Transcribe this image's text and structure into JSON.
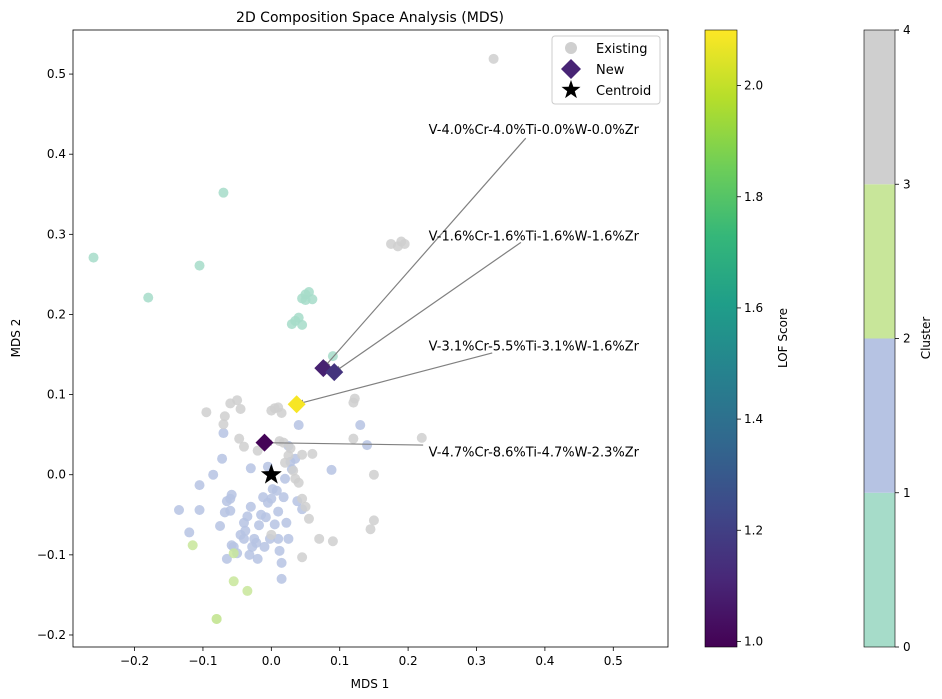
{
  "chart_data": {
    "type": "scatter",
    "title": "2D Composition Space Analysis (MDS)",
    "xlabel": "MDS 1",
    "ylabel": "MDS 2",
    "xlim": [
      -0.29,
      0.58
    ],
    "ylim": [
      -0.215,
      0.555
    ],
    "xticks": [
      -0.2,
      -0.1,
      0.0,
      0.1,
      0.2,
      0.3,
      0.4,
      0.5
    ],
    "xtick_labels": [
      "−0.2",
      "−0.1",
      "0.0",
      "0.1",
      "0.2",
      "0.3",
      "0.4",
      "0.5"
    ],
    "yticks": [
      -0.2,
      -0.1,
      0.0,
      0.1,
      0.2,
      0.3,
      0.4,
      0.5
    ],
    "ytick_labels": [
      "−0.2",
      "−0.1",
      "0.0",
      "0.1",
      "0.2",
      "0.3",
      "0.4",
      "0.5"
    ],
    "grid": false,
    "legend_position": "top-right",
    "legend": [
      "Existing",
      "New",
      "Centroid"
    ],
    "cluster_colors": [
      "#a6dcc9",
      "#b6c3e3",
      "#c8e69a",
      "#cfcfcf"
    ],
    "existing_by_cluster": [
      {
        "cluster": 0,
        "points": [
          [
            -0.26,
            0.271
          ],
          [
            -0.18,
            0.221
          ],
          [
            -0.07,
            0.352
          ],
          [
            -0.105,
            0.261
          ],
          [
            0.03,
            0.188
          ],
          [
            0.04,
            0.196
          ],
          [
            0.045,
            0.187
          ],
          [
            0.045,
            0.22
          ],
          [
            0.05,
            0.225
          ],
          [
            0.055,
            0.228
          ],
          [
            0.06,
            0.219
          ],
          [
            0.035,
            0.192
          ],
          [
            0.09,
            0.148
          ],
          [
            0.05,
            0.218
          ]
        ]
      },
      {
        "cluster": 1,
        "points": [
          [
            -0.135,
            -0.044
          ],
          [
            -0.12,
            -0.072
          ],
          [
            -0.105,
            -0.013
          ],
          [
            -0.105,
            -0.044
          ],
          [
            -0.085,
            0.0
          ],
          [
            -0.075,
            -0.064
          ],
          [
            -0.072,
            0.02
          ],
          [
            -0.068,
            -0.047
          ],
          [
            -0.065,
            -0.033
          ],
          [
            -0.065,
            -0.105
          ],
          [
            -0.06,
            -0.03
          ],
          [
            -0.06,
            -0.045
          ],
          [
            -0.058,
            -0.025
          ],
          [
            -0.058,
            -0.088
          ],
          [
            -0.055,
            -0.09
          ],
          [
            -0.05,
            -0.098
          ],
          [
            -0.045,
            -0.075
          ],
          [
            -0.04,
            -0.08
          ],
          [
            -0.04,
            -0.06
          ],
          [
            -0.038,
            -0.07
          ],
          [
            -0.035,
            -0.052
          ],
          [
            -0.032,
            -0.1
          ],
          [
            -0.03,
            0.008
          ],
          [
            -0.03,
            -0.04
          ],
          [
            -0.028,
            -0.09
          ],
          [
            -0.025,
            -0.08
          ],
          [
            -0.022,
            -0.085
          ],
          [
            -0.02,
            -0.105
          ],
          [
            -0.018,
            -0.063
          ],
          [
            -0.015,
            -0.05
          ],
          [
            -0.012,
            -0.028
          ],
          [
            -0.01,
            -0.09
          ],
          [
            -0.008,
            -0.053
          ],
          [
            -0.005,
            0.01
          ],
          [
            -0.002,
            -0.08
          ],
          [
            0.0,
            -0.03
          ],
          [
            0.002,
            -0.018
          ],
          [
            0.005,
            -0.062
          ],
          [
            0.008,
            -0.02
          ],
          [
            0.01,
            -0.046
          ],
          [
            0.012,
            -0.095
          ],
          [
            0.015,
            -0.13
          ],
          [
            0.015,
            -0.11
          ],
          [
            0.018,
            -0.028
          ],
          [
            0.02,
            -0.005
          ],
          [
            0.022,
            -0.06
          ],
          [
            0.025,
            -0.08
          ],
          [
            0.025,
            0.036
          ],
          [
            0.028,
            0.016
          ],
          [
            0.03,
            0.007
          ],
          [
            0.035,
            0.02
          ],
          [
            0.038,
            -0.033
          ],
          [
            0.04,
            0.062
          ],
          [
            0.045,
            -0.043
          ],
          [
            0.088,
            0.006
          ],
          [
            0.13,
            0.062
          ],
          [
            0.14,
            0.037
          ],
          [
            -0.07,
            0.052
          ],
          [
            -0.005,
            -0.035
          ],
          [
            0.01,
            -0.08
          ]
        ]
      },
      {
        "cluster": 2,
        "points": [
          [
            -0.115,
            -0.088
          ],
          [
            -0.055,
            -0.098
          ],
          [
            -0.055,
            -0.133
          ],
          [
            -0.035,
            -0.145
          ],
          [
            -0.08,
            -0.18
          ],
          [
            -0.08,
            -0.18
          ]
        ]
      },
      {
        "cluster": 3,
        "points": [
          [
            -0.095,
            0.078
          ],
          [
            -0.068,
            0.073
          ],
          [
            -0.07,
            0.063
          ],
          [
            -0.05,
            0.093
          ],
          [
            -0.047,
            0.045
          ],
          [
            -0.045,
            0.082
          ],
          [
            -0.04,
            0.035
          ],
          [
            -0.06,
            0.089
          ],
          [
            0.0,
            0.08
          ],
          [
            0.005,
            0.083
          ],
          [
            0.01,
            0.084
          ],
          [
            0.012,
            0.042
          ],
          [
            0.015,
            0.077
          ],
          [
            0.018,
            0.04
          ],
          [
            0.025,
            0.024
          ],
          [
            0.028,
            0.033
          ],
          [
            0.032,
            0.005
          ],
          [
            0.035,
            -0.005
          ],
          [
            0.04,
            -0.01
          ],
          [
            0.045,
            0.025
          ],
          [
            0.045,
            -0.03
          ],
          [
            0.05,
            -0.04
          ],
          [
            0.055,
            -0.055
          ],
          [
            0.06,
            0.026
          ],
          [
            0.07,
            -0.08
          ],
          [
            0.09,
            -0.083
          ],
          [
            0.12,
            0.09
          ],
          [
            0.122,
            0.095
          ],
          [
            0.12,
            0.045
          ],
          [
            0.145,
            -0.068
          ],
          [
            0.15,
            -0.057
          ],
          [
            0.15,
            0.0
          ],
          [
            0.175,
            0.288
          ],
          [
            0.185,
            0.285
          ],
          [
            0.19,
            0.291
          ],
          [
            0.195,
            0.288
          ],
          [
            0.22,
            0.046
          ],
          [
            0.325,
            0.519
          ],
          [
            0.045,
            -0.103
          ],
          [
            0.0,
            -0.075
          ],
          [
            0.02,
            0.015
          ],
          [
            -0.02,
            0.03
          ]
        ]
      }
    ],
    "new_points": [
      {
        "x": 0.076,
        "y": 0.133,
        "lof": 1.09,
        "label": "V-4.0%Cr-4.0%Ti-0.0%W-0.0%Zr",
        "label_x": 0.23,
        "label_y": 0.43,
        "arrow_from": [
          0.372,
          0.42
        ]
      },
      {
        "x": 0.092,
        "y": 0.128,
        "lof": 1.16,
        "label": "V-1.6%Cr-1.6%Ti-1.6%W-1.6%Zr",
        "label_x": 0.23,
        "label_y": 0.297,
        "arrow_from": [
          0.365,
          0.29
        ]
      },
      {
        "x": 0.037,
        "y": 0.088,
        "lof": 2.09,
        "label": "V-3.1%Cr-5.5%Ti-3.1%W-1.6%Zr",
        "label_x": 0.23,
        "label_y": 0.16,
        "arrow_from": [
          0.323,
          0.152
        ]
      },
      {
        "x": -0.01,
        "y": 0.04,
        "lof": 1.0,
        "label": "V-4.7%Cr-8.6%Ti-4.7%W-2.3%Zr",
        "label_x": 0.23,
        "label_y": 0.028,
        "arrow_from": [
          0.222,
          0.037
        ]
      }
    ],
    "centroid": {
      "x": 0.0,
      "y": 0.0
    },
    "lof_colorbar": {
      "label": "LOF Score",
      "min": 0.99,
      "max": 2.1,
      "ticks": [
        1.0,
        1.2,
        1.4,
        1.6,
        1.8,
        2.0
      ],
      "tick_labels": [
        "1.0",
        "1.2",
        "1.4",
        "1.6",
        "1.8",
        "2.0"
      ],
      "colormap": [
        "#440154",
        "#482878",
        "#3e4989",
        "#31688e",
        "#26828e",
        "#1f9e89",
        "#35b779",
        "#6ece58",
        "#b5de2b",
        "#fde725"
      ]
    },
    "cluster_colorbar": {
      "label": "Cluster",
      "ticks": [
        0,
        1,
        2,
        3,
        4
      ],
      "tick_labels": [
        "0",
        "1",
        "2",
        "3",
        "4"
      ]
    }
  }
}
